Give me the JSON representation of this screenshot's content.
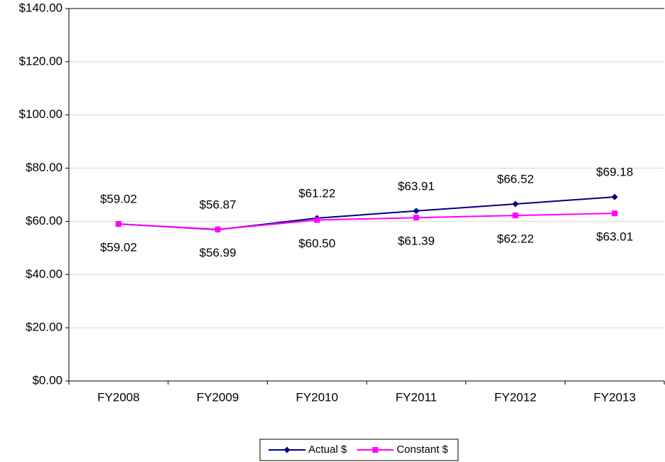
{
  "chart_data": {
    "type": "line",
    "categories": [
      "FY2008",
      "FY2009",
      "FY2010",
      "FY2011",
      "FY2012",
      "FY2013"
    ],
    "series": [
      {
        "name": "Actual $",
        "color": "#000080",
        "marker": "diamond",
        "values": [
          59.02,
          56.87,
          61.22,
          63.91,
          66.52,
          69.18
        ],
        "value_labels": [
          "$59.02",
          "$56.87",
          "$61.22",
          "$63.91",
          "$66.52",
          "$69.18"
        ]
      },
      {
        "name": "Constant $",
        "color": "#ff00ff",
        "marker": "square",
        "values": [
          59.02,
          56.99,
          60.5,
          61.39,
          62.22,
          63.01
        ],
        "value_labels": [
          "$59.02",
          "$56.99",
          "$60.50",
          "$61.39",
          "$62.22",
          "$63.01"
        ]
      }
    ],
    "ylim": [
      0,
      140
    ],
    "yticks": [
      {
        "value": 0,
        "label": "$0.00"
      },
      {
        "value": 20,
        "label": "$20.00"
      },
      {
        "value": 40,
        "label": "$40.00"
      },
      {
        "value": 60,
        "label": "$60.00"
      },
      {
        "value": 80,
        "label": "$80.00"
      },
      {
        "value": 100,
        "label": "$100.00"
      },
      {
        "value": 120,
        "label": "$120.00"
      },
      {
        "value": 140,
        "label": "$140.00"
      }
    ],
    "grid": true,
    "legend": "bottom"
  }
}
